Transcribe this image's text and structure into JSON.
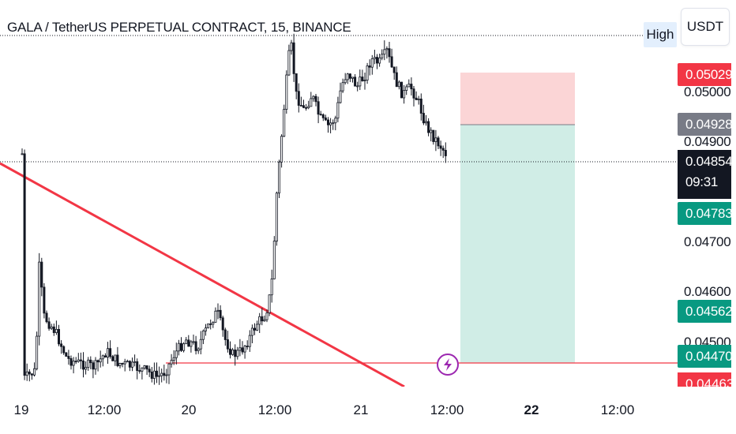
{
  "header": {
    "title": "GALA / TetherUS PERPETUAL CONTRACT, 15, BINANCE",
    "high_badge": "High",
    "currency_button": "USDT"
  },
  "price_axis": {
    "ticks": [
      "0.05000",
      "0.04900",
      "0.04700",
      "0.04600",
      "0.04500"
    ],
    "tags": {
      "stop_loss": "0.05029",
      "entry": "0.04928",
      "last_price": "0.04854",
      "countdown": "09:31",
      "target": "0.04783",
      "green_level": "0.04562",
      "red_level": "0.04470",
      "clipped": "0.04463"
    }
  },
  "time_axis": {
    "labels": [
      {
        "text": "19",
        "bold": false
      },
      {
        "text": "12:00",
        "bold": false
      },
      {
        "text": "20",
        "bold": false
      },
      {
        "text": "12:00",
        "bold": false
      },
      {
        "text": "21",
        "bold": false
      },
      {
        "text": "12:00",
        "bold": false
      },
      {
        "text": "22",
        "bold": true
      },
      {
        "text": "12:00",
        "bold": false
      }
    ]
  },
  "colors": {
    "up": "#131722",
    "down": "#131722",
    "stop_zone": "#fbd5d6",
    "target_zone": "#d0ede6",
    "trendline": "#f23645",
    "red_tag": "#f23645",
    "gray_tag": "#787b86",
    "green_tag": "#089981",
    "dark_tag": "#131722",
    "alert_icon": "#9c27b0"
  },
  "icons": {
    "alert": "lightning-icon"
  }
}
